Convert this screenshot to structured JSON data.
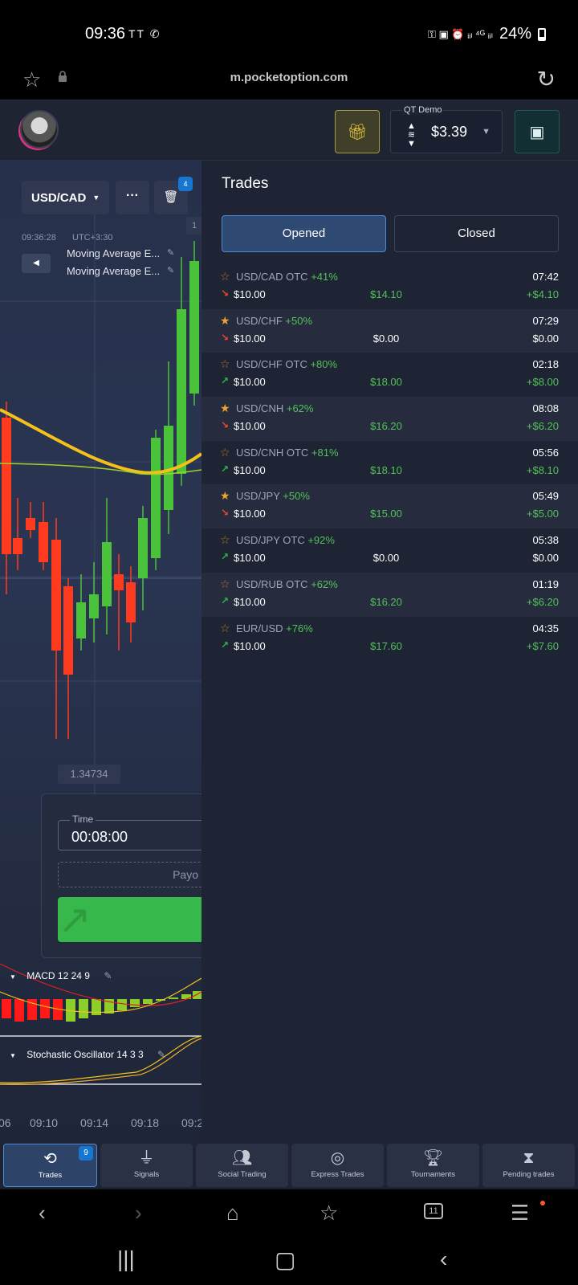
{
  "status_bar": {
    "time": "09:36",
    "left_icons": "TT ✆",
    "right_icons": "⚿ ▣ ⏰ ᵢᵢₗ ⁴ᴳ ᵢᵢₗ",
    "battery": "24%"
  },
  "browser": {
    "url": "m.pocketoption.com",
    "tab_count": "11"
  },
  "header": {
    "account_label": "QT Demo",
    "balance": "$3.39"
  },
  "chart": {
    "pair": "USD/CAD",
    "more_label": "···",
    "badge_count": "4",
    "time": "09:36:28",
    "timezone": "UTC+3:30",
    "y_tag": "1",
    "indicators": [
      "Moving Average E...",
      "Moving Average E..."
    ],
    "current_price": "1.34734",
    "macd_label": "MACD  12 24 9",
    "stoch_label": "Stochastic Oscillator  14 3 3",
    "x_ticks": [
      "06",
      "09:10",
      "09:14",
      "09:18",
      "09:2"
    ]
  },
  "order": {
    "time_label": "Time",
    "time_value": "00:08:00",
    "payout_text": "Payo"
  },
  "trades_panel": {
    "title": "Trades",
    "tab_opened": "Opened",
    "tab_closed": "Closed",
    "trades": [
      {
        "pair": "USD/CAD OTC",
        "pct": "+41%",
        "duration": "07:42",
        "amount": "$10.00",
        "return": "$14.10",
        "pl": "+$4.10",
        "starred": false,
        "direction": "down"
      },
      {
        "pair": "USD/CHF",
        "pct": "+50%",
        "duration": "07:29",
        "amount": "$10.00",
        "return": "$0.00",
        "pl": "$0.00",
        "starred": true,
        "direction": "down"
      },
      {
        "pair": "USD/CHF OTC",
        "pct": "+80%",
        "duration": "02:18",
        "amount": "$10.00",
        "return": "$18.00",
        "pl": "+$8.00",
        "starred": false,
        "direction": "up"
      },
      {
        "pair": "USD/CNH",
        "pct": "+62%",
        "duration": "08:08",
        "amount": "$10.00",
        "return": "$16.20",
        "pl": "+$6.20",
        "starred": true,
        "direction": "down"
      },
      {
        "pair": "USD/CNH OTC",
        "pct": "+81%",
        "duration": "05:56",
        "amount": "$10.00",
        "return": "$18.10",
        "pl": "+$8.10",
        "starred": false,
        "direction": "up"
      },
      {
        "pair": "USD/JPY",
        "pct": "+50%",
        "duration": "05:49",
        "amount": "$10.00",
        "return": "$15.00",
        "pl": "+$5.00",
        "starred": true,
        "direction": "down"
      },
      {
        "pair": "USD/JPY OTC",
        "pct": "+92%",
        "duration": "05:38",
        "amount": "$10.00",
        "return": "$0.00",
        "pl": "$0.00",
        "starred": false,
        "direction": "up"
      },
      {
        "pair": "USD/RUB OTC",
        "pct": "+62%",
        "duration": "01:19",
        "amount": "$10.00",
        "return": "$16.20",
        "pl": "+$6.20",
        "starred": false,
        "direction": "up"
      },
      {
        "pair": "EUR/USD",
        "pct": "+76%",
        "duration": "04:35",
        "amount": "$10.00",
        "return": "$17.60",
        "pl": "+$7.60",
        "starred": false,
        "direction": "up"
      }
    ]
  },
  "bottom_tabs": [
    {
      "label": "Trades",
      "icon": "history-icon",
      "badge": "9",
      "active": true
    },
    {
      "label": "Signals",
      "icon": "antenna-icon",
      "badge": "",
      "active": false
    },
    {
      "label": "Social Trading",
      "icon": "people-icon",
      "badge": "",
      "active": false
    },
    {
      "label": "Express Trades",
      "icon": "target-icon",
      "badge": "",
      "active": false
    },
    {
      "label": "Tournaments",
      "icon": "trophy-icon",
      "badge": "",
      "active": false
    },
    {
      "label": "Pending trades",
      "icon": "hourglass-icon",
      "badge": "",
      "active": false
    }
  ],
  "colors": {
    "panel_bg": "#1f2434",
    "accent_blue": "#4a8bd8",
    "win_green": "#53c15a",
    "loss_red": "#f04a2d",
    "star_orange": "#f0a32f"
  }
}
